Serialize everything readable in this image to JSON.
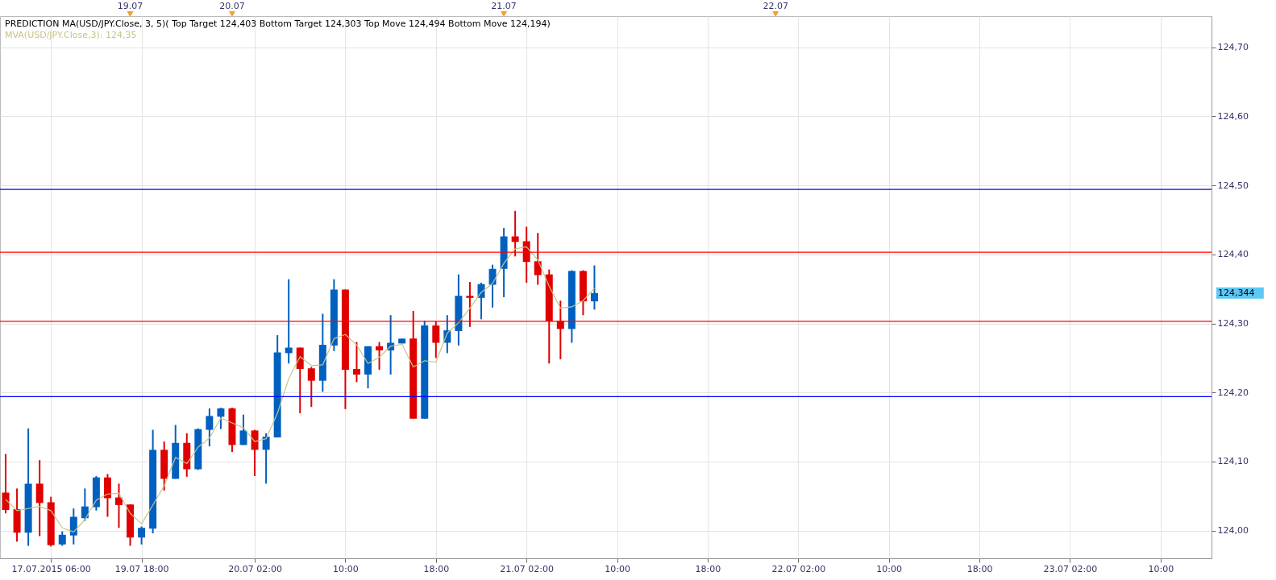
{
  "chart_data": {
    "type": "candlestick",
    "title": "PREDICTION MA(USD/JPY.Close, 3, 5)( Top Target 124,403 Bottom Target 124,303 Top Move 124,494 Bottom Move 124,194)",
    "categories": [
      null,
      null,
      null,
      null,
      "17.07.2015 06:00",
      null,
      null,
      null,
      null,
      null,
      null,
      null,
      "19.07 18:00",
      null,
      null,
      null,
      null,
      null,
      null,
      null,
      null,
      null,
      "20.07 02:00",
      null,
      null,
      null,
      null,
      null,
      null,
      null,
      "10:00",
      null,
      null,
      null,
      null,
      null,
      null,
      null,
      "18:00",
      null,
      null,
      null,
      null,
      null,
      null,
      null,
      "21.07 02:00",
      null,
      null,
      null,
      null,
      null,
      null,
      null,
      "10:00",
      null,
      null,
      null,
      null,
      null,
      null,
      null,
      "18:00",
      null,
      null,
      null,
      null,
      null,
      null,
      null,
      "22.07 02:00",
      null,
      null,
      null,
      null,
      null,
      null,
      null,
      "10:00",
      null,
      null,
      null,
      null,
      null,
      null,
      null,
      "18:00",
      null,
      null,
      null,
      null,
      null,
      null,
      null,
      "23.07 02:00",
      null,
      null,
      null,
      null,
      null,
      null,
      null,
      "10:00",
      null,
      null,
      null,
      null
    ],
    "ohlc": [
      [
        124.055,
        124.111,
        124.025,
        124.03
      ],
      [
        124.031,
        124.061,
        123.984,
        123.997
      ],
      [
        123.997,
        124.148,
        123.978,
        124.068
      ],
      [
        124.068,
        124.102,
        123.992,
        124.04
      ],
      [
        124.041,
        124.049,
        123.977,
        123.979
      ],
      [
        123.98,
        123.999,
        123.978,
        123.994
      ],
      [
        123.993,
        124.032,
        123.98,
        124.02
      ],
      [
        124.018,
        124.061,
        124.014,
        124.035
      ],
      [
        124.034,
        124.079,
        124.029,
        124.077
      ],
      [
        124.077,
        124.082,
        124.02,
        124.047
      ],
      [
        124.048,
        124.068,
        124.004,
        124.037
      ],
      [
        124.038,
        124.038,
        123.978,
        123.99
      ],
      [
        123.99,
        124.006,
        123.98,
        124.004
      ],
      [
        124.003,
        124.146,
        123.996,
        124.117
      ],
      [
        124.117,
        124.129,
        124.058,
        124.075
      ],
      [
        124.075,
        124.153,
        124.075,
        124.127
      ],
      [
        124.127,
        124.141,
        124.078,
        124.089
      ],
      [
        124.089,
        124.148,
        124.088,
        124.147
      ],
      [
        124.146,
        124.177,
        124.122,
        124.166
      ],
      [
        124.165,
        124.178,
        124.147,
        124.177
      ],
      [
        124.177,
        124.178,
        124.114,
        124.124
      ],
      [
        124.124,
        124.168,
        124.124,
        124.145
      ],
      [
        124.145,
        124.146,
        124.079,
        124.117
      ],
      [
        124.117,
        124.141,
        124.068,
        124.136
      ],
      [
        124.135,
        124.283,
        124.135,
        124.258
      ],
      [
        124.257,
        124.364,
        124.242,
        124.265
      ],
      [
        124.265,
        124.265,
        124.17,
        124.234
      ],
      [
        124.235,
        124.237,
        124.179,
        124.217
      ],
      [
        124.217,
        124.314,
        124.201,
        124.269
      ],
      [
        124.268,
        124.364,
        124.26,
        124.349
      ],
      [
        124.349,
        124.349,
        124.176,
        124.233
      ],
      [
        124.234,
        124.273,
        124.215,
        124.226
      ],
      [
        124.226,
        124.267,
        124.206,
        124.267
      ],
      [
        124.267,
        124.273,
        124.233,
        124.261
      ],
      [
        124.261,
        124.312,
        124.226,
        124.272
      ],
      [
        124.271,
        124.278,
        124.271,
        124.278
      ],
      [
        124.278,
        124.318,
        124.162,
        124.162
      ],
      [
        124.162,
        124.304,
        124.162,
        124.297
      ],
      [
        124.297,
        124.303,
        124.25,
        124.272
      ],
      [
        124.272,
        124.312,
        124.257,
        124.29
      ],
      [
        124.289,
        124.371,
        124.268,
        124.34
      ],
      [
        124.34,
        124.36,
        124.295,
        124.337
      ],
      [
        124.337,
        124.359,
        124.306,
        124.357
      ],
      [
        124.356,
        124.385,
        124.323,
        124.379
      ],
      [
        124.379,
        124.438,
        124.338,
        124.426
      ],
      [
        124.426,
        124.463,
        124.397,
        124.418
      ],
      [
        124.419,
        124.44,
        124.359,
        124.389
      ],
      [
        124.39,
        124.431,
        124.356,
        124.37
      ],
      [
        124.371,
        124.378,
        124.242,
        124.303
      ],
      [
        124.304,
        124.333,
        124.248,
        124.292
      ],
      [
        124.292,
        124.377,
        124.272,
        124.376
      ],
      [
        124.376,
        124.377,
        124.312,
        124.332
      ],
      [
        124.332,
        124.384,
        124.32,
        124.344
      ],
      null,
      null,
      null,
      null,
      null,
      null,
      null,
      null,
      null,
      null,
      null,
      null,
      null,
      null,
      null,
      null,
      null,
      null,
      null,
      null,
      null,
      null,
      null,
      null,
      null,
      null,
      null,
      null,
      null,
      null,
      null,
      null,
      null,
      null,
      null,
      null,
      null,
      null,
      null,
      null,
      null,
      null,
      null,
      null,
      null,
      null,
      null,
      null,
      null,
      null,
      null,
      null,
      null,
      null
    ],
    "colors": [
      "#e00000",
      "#e00000",
      "#0060bf",
      "#e00000",
      "#e00000",
      "#0060bf",
      "#0060bf",
      "#0060bf",
      "#0060bf",
      "#e00000",
      "#e00000",
      "#e00000",
      "#0060bf",
      "#0060bf",
      "#e00000",
      "#0060bf",
      "#e00000",
      "#0060bf",
      "#0060bf",
      "#0060bf",
      "#e00000",
      "#0060bf",
      "#e00000",
      "#0060bf",
      "#0060bf",
      "#0060bf",
      "#e00000",
      "#e00000",
      "#0060bf",
      "#0060bf",
      "#e00000",
      "#e00000",
      "#0060bf",
      "#e00000",
      "#0060bf",
      "#0060bf",
      "#e00000",
      "#0060bf",
      "#e00000",
      "#0060bf",
      "#0060bf",
      "#e00000",
      "#0060bf",
      "#0060bf",
      "#0060bf",
      "#e00000",
      "#e00000",
      "#e00000",
      "#e00000",
      "#e00000",
      "#0060bf",
      "#e00000",
      "#0060bf",
      null,
      null,
      null,
      null,
      null,
      null,
      null,
      null,
      null,
      null,
      null,
      null,
      null,
      null,
      null,
      null,
      null,
      null,
      null,
      null,
      null,
      null,
      null,
      null,
      null,
      null,
      null,
      null,
      null,
      null,
      null,
      null,
      null,
      null,
      null,
      null,
      null,
      null,
      null,
      null,
      null,
      null,
      null,
      null,
      null,
      null,
      null,
      null,
      null,
      null,
      null,
      null,
      null,
      null
    ],
    "series": [
      {
        "name": "MVA(USD/JPY.Close,3): 124,35",
        "type": "line",
        "color": "#c8c487",
        "values": [
          124.045,
          124.029,
          124.032,
          124.035,
          124.029,
          124.004,
          123.998,
          124.016,
          124.044,
          124.053,
          124.054,
          124.025,
          124.01,
          124.037,
          124.065,
          124.106,
          124.097,
          124.121,
          124.134,
          124.163,
          124.156,
          124.149,
          124.129,
          124.133,
          124.17,
          124.22,
          124.252,
          124.239,
          124.24,
          124.278,
          124.284,
          124.269,
          124.242,
          124.251,
          124.267,
          124.27,
          124.237,
          124.246,
          124.244,
          124.286,
          124.301,
          124.322,
          124.345,
          124.358,
          124.387,
          124.408,
          124.411,
          124.392,
          124.354,
          124.322,
          124.324,
          124.333,
          124.351,
          null,
          null,
          null,
          null,
          null,
          null,
          null,
          null,
          null,
          null,
          null,
          null,
          null,
          null,
          null,
          null,
          null,
          null,
          null,
          null,
          null,
          null,
          null,
          null,
          null,
          null,
          null,
          null,
          null,
          null,
          null,
          null,
          null,
          null,
          null,
          null,
          null,
          null,
          null,
          null,
          null,
          null,
          null,
          null,
          null,
          null,
          null,
          null,
          null,
          null,
          null,
          null,
          null,
          null
        ]
      }
    ],
    "ylim": [
      123.96,
      124.745
    ],
    "yticks": [
      {
        "value": 124.0,
        "label": "124,00"
      },
      {
        "value": 124.1,
        "label": "124,10"
      },
      {
        "value": 124.2,
        "label": "124,20"
      },
      {
        "value": 124.3,
        "label": "124,30"
      },
      {
        "value": 124.4,
        "label": "124,40"
      },
      {
        "value": 124.5,
        "label": "124,50"
      },
      {
        "value": 124.6,
        "label": "124,60"
      },
      {
        "value": 124.7,
        "label": "124,70"
      }
    ],
    "ref_lines": [
      {
        "axis": "y",
        "value": 124.494,
        "color": "#0000ff"
      },
      {
        "axis": "y",
        "value": 124.403,
        "color": "#ff0000"
      },
      {
        "axis": "y",
        "value": 124.303,
        "color": "#ff0000"
      },
      {
        "axis": "y",
        "value": 124.194,
        "color": "#0000ff"
      }
    ],
    "annotations": [
      "19.07",
      "20.07",
      "21.07",
      "22.07",
      "124,344"
    ],
    "grid": true
  }
}
